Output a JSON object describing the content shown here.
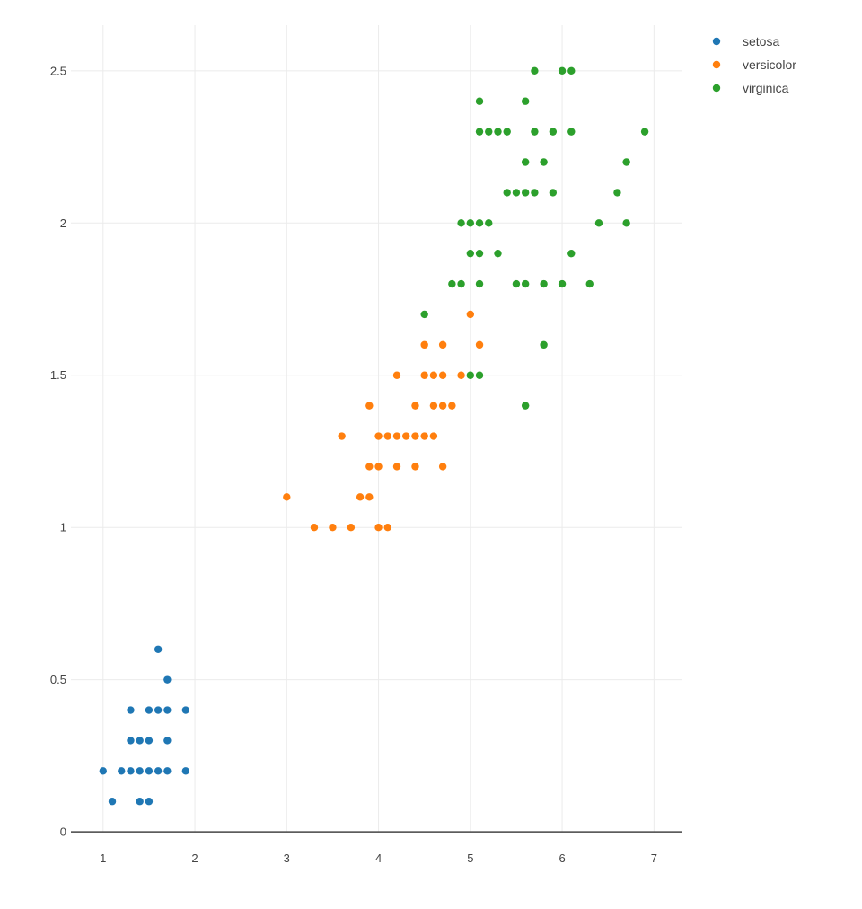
{
  "chart_data": {
    "type": "scatter",
    "xlim": [
      0.65,
      7.3
    ],
    "ylim": [
      -0.1,
      2.65
    ],
    "x_ticks": [
      1,
      2,
      3,
      4,
      5,
      6,
      7
    ],
    "y_ticks": [
      0,
      0.5,
      1,
      1.5,
      2,
      2.5
    ],
    "x_tick_labels": [
      "1",
      "2",
      "3",
      "4",
      "5",
      "6",
      "7"
    ],
    "y_tick_labels": [
      "0",
      "0.5",
      "1",
      "1.5",
      "2",
      "2.5"
    ],
    "grid": true,
    "legend_position": "top-right",
    "series": [
      {
        "name": "setosa",
        "color": "#1f77b4",
        "points": [
          [
            1.0,
            0.2
          ],
          [
            1.1,
            0.1
          ],
          [
            1.2,
            0.2
          ],
          [
            1.3,
            0.2
          ],
          [
            1.3,
            0.3
          ],
          [
            1.3,
            0.4
          ],
          [
            1.4,
            0.1
          ],
          [
            1.4,
            0.2
          ],
          [
            1.4,
            0.3
          ],
          [
            1.5,
            0.1
          ],
          [
            1.5,
            0.2
          ],
          [
            1.5,
            0.3
          ],
          [
            1.5,
            0.4
          ],
          [
            1.6,
            0.2
          ],
          [
            1.6,
            0.4
          ],
          [
            1.6,
            0.6
          ],
          [
            1.7,
            0.2
          ],
          [
            1.7,
            0.3
          ],
          [
            1.7,
            0.4
          ],
          [
            1.7,
            0.5
          ],
          [
            1.9,
            0.2
          ],
          [
            1.9,
            0.4
          ]
        ]
      },
      {
        "name": "versicolor",
        "color": "#ff7f0e",
        "points": [
          [
            3.0,
            1.1
          ],
          [
            3.3,
            1.0
          ],
          [
            3.5,
            1.0
          ],
          [
            3.6,
            1.3
          ],
          [
            3.7,
            1.0
          ],
          [
            3.8,
            1.1
          ],
          [
            3.9,
            1.1
          ],
          [
            3.9,
            1.2
          ],
          [
            3.9,
            1.4
          ],
          [
            4.0,
            1.0
          ],
          [
            4.0,
            1.2
          ],
          [
            4.0,
            1.3
          ],
          [
            4.1,
            1.0
          ],
          [
            4.1,
            1.3
          ],
          [
            4.2,
            1.2
          ],
          [
            4.2,
            1.3
          ],
          [
            4.2,
            1.5
          ],
          [
            4.3,
            1.3
          ],
          [
            4.4,
            1.2
          ],
          [
            4.4,
            1.3
          ],
          [
            4.4,
            1.4
          ],
          [
            4.5,
            1.3
          ],
          [
            4.5,
            1.5
          ],
          [
            4.5,
            1.6
          ],
          [
            4.6,
            1.3
          ],
          [
            4.6,
            1.4
          ],
          [
            4.6,
            1.5
          ],
          [
            4.7,
            1.2
          ],
          [
            4.7,
            1.4
          ],
          [
            4.7,
            1.5
          ],
          [
            4.7,
            1.6
          ],
          [
            4.8,
            1.4
          ],
          [
            4.9,
            1.5
          ],
          [
            5.0,
            1.7
          ],
          [
            5.1,
            1.6
          ]
        ]
      },
      {
        "name": "virginica",
        "color": "#2ca02c",
        "points": [
          [
            4.5,
            1.7
          ],
          [
            4.8,
            1.8
          ],
          [
            4.9,
            1.8
          ],
          [
            4.9,
            2.0
          ],
          [
            5.0,
            1.5
          ],
          [
            5.0,
            1.9
          ],
          [
            5.0,
            2.0
          ],
          [
            5.1,
            1.5
          ],
          [
            5.1,
            1.8
          ],
          [
            5.1,
            1.9
          ],
          [
            5.1,
            2.0
          ],
          [
            5.1,
            2.3
          ],
          [
            5.1,
            2.4
          ],
          [
            5.2,
            2.0
          ],
          [
            5.2,
            2.3
          ],
          [
            5.3,
            1.9
          ],
          [
            5.3,
            2.3
          ],
          [
            5.4,
            2.1
          ],
          [
            5.4,
            2.3
          ],
          [
            5.5,
            1.8
          ],
          [
            5.5,
            2.1
          ],
          [
            5.6,
            1.4
          ],
          [
            5.6,
            1.8
          ],
          [
            5.6,
            2.1
          ],
          [
            5.6,
            2.2
          ],
          [
            5.6,
            2.4
          ],
          [
            5.7,
            2.1
          ],
          [
            5.7,
            2.3
          ],
          [
            5.7,
            2.5
          ],
          [
            5.8,
            1.6
          ],
          [
            5.8,
            1.8
          ],
          [
            5.8,
            2.2
          ],
          [
            5.9,
            2.1
          ],
          [
            5.9,
            2.3
          ],
          [
            6.0,
            1.8
          ],
          [
            6.0,
            2.5
          ],
          [
            6.1,
            1.9
          ],
          [
            6.1,
            2.3
          ],
          [
            6.1,
            2.5
          ],
          [
            6.3,
            1.8
          ],
          [
            6.4,
            2.0
          ],
          [
            6.6,
            2.1
          ],
          [
            6.7,
            2.0
          ],
          [
            6.7,
            2.2
          ],
          [
            6.9,
            2.3
          ]
        ]
      }
    ]
  }
}
